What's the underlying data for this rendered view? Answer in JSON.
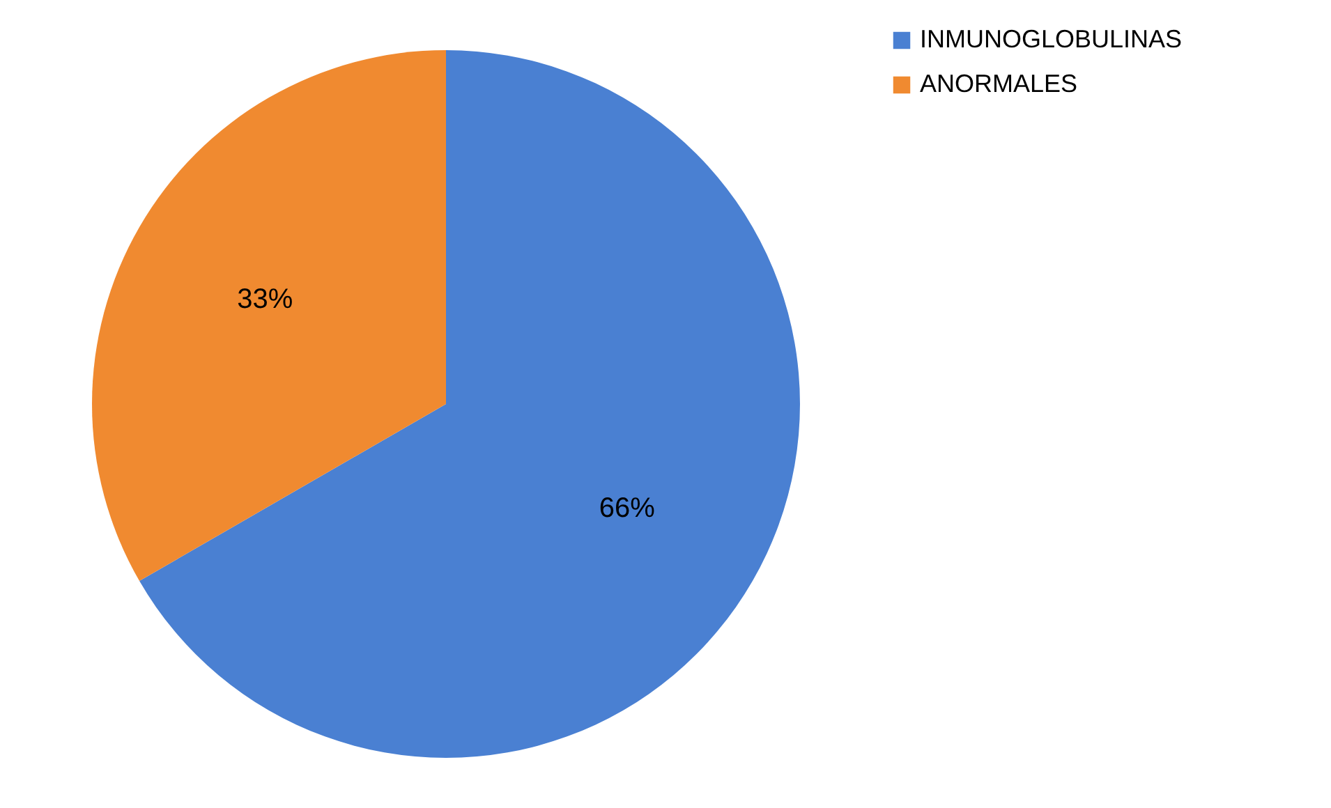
{
  "chart_data": {
    "type": "pie",
    "categories": [
      "INMUNOGLOBULINAS",
      "ANORMALES"
    ],
    "values": [
      66,
      33
    ],
    "colors": [
      "#4a80d2",
      "#f08a30"
    ],
    "value_labels": [
      "66%",
      "33%"
    ],
    "legend": "right"
  }
}
